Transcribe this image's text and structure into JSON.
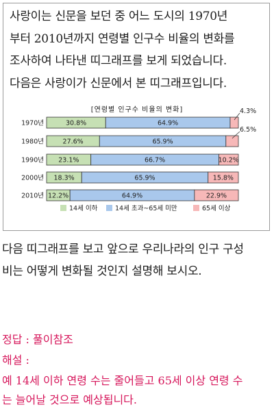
{
  "intro_lines": [
    "사랑이는 신문을 보던 중 어느 도시의 1970년",
    "부터 2010년까지 연령별 인구수 비율의 변화를",
    "조사하여 나타낸 띠그래프를 보게 되었습니다.",
    "다음은 사랑이가 신문에서 본 띠그래프입니다."
  ],
  "chart_data": {
    "type": "bar",
    "stacked": true,
    "orientation": "horizontal",
    "percent": true,
    "title": "[연령별 인구수 비율의 변화]",
    "categories": [
      "1970년",
      "1980년",
      "1990년",
      "2000년",
      "2010년"
    ],
    "series": [
      {
        "name": "14세 이하",
        "color": "#c6e0b4",
        "values": [
          30.8,
          27.6,
          23.1,
          18.3,
          12.2
        ],
        "labels": [
          "30.8%",
          "27.6%",
          "23.1%",
          "18.3%",
          "12.2%"
        ]
      },
      {
        "name": "14세 초과~65세 미만",
        "color": "#a9c8ec",
        "values": [
          64.9,
          65.9,
          66.7,
          65.9,
          64.9
        ],
        "labels": [
          "64.9%",
          "65.9%",
          "66.7%",
          "65.9%",
          "64.9%"
        ]
      },
      {
        "name": "65세 이상",
        "color": "#f7b8b8",
        "values": [
          4.3,
          6.5,
          10.2,
          15.8,
          22.9
        ],
        "labels": [
          "4.3%",
          "6.5%",
          "10.2%",
          "15.8%",
          "22.9%"
        ]
      }
    ],
    "legend_position": "bottom"
  },
  "question_lines": [
    "다음 띠그래프를 보고 앞으로 우리나라의 인구 구성",
    "비는 어떻게 변화될 것인지 설명해 보시오."
  ],
  "answer": {
    "label": "정답 : 풀이참조",
    "explanation_label": "해설 :",
    "explanation_lines": [
      "예 14세 이하 연령 수는 줄어들고 65세 이상 연령 수",
      "는 늘어날 것으로 예상됩니다."
    ]
  }
}
